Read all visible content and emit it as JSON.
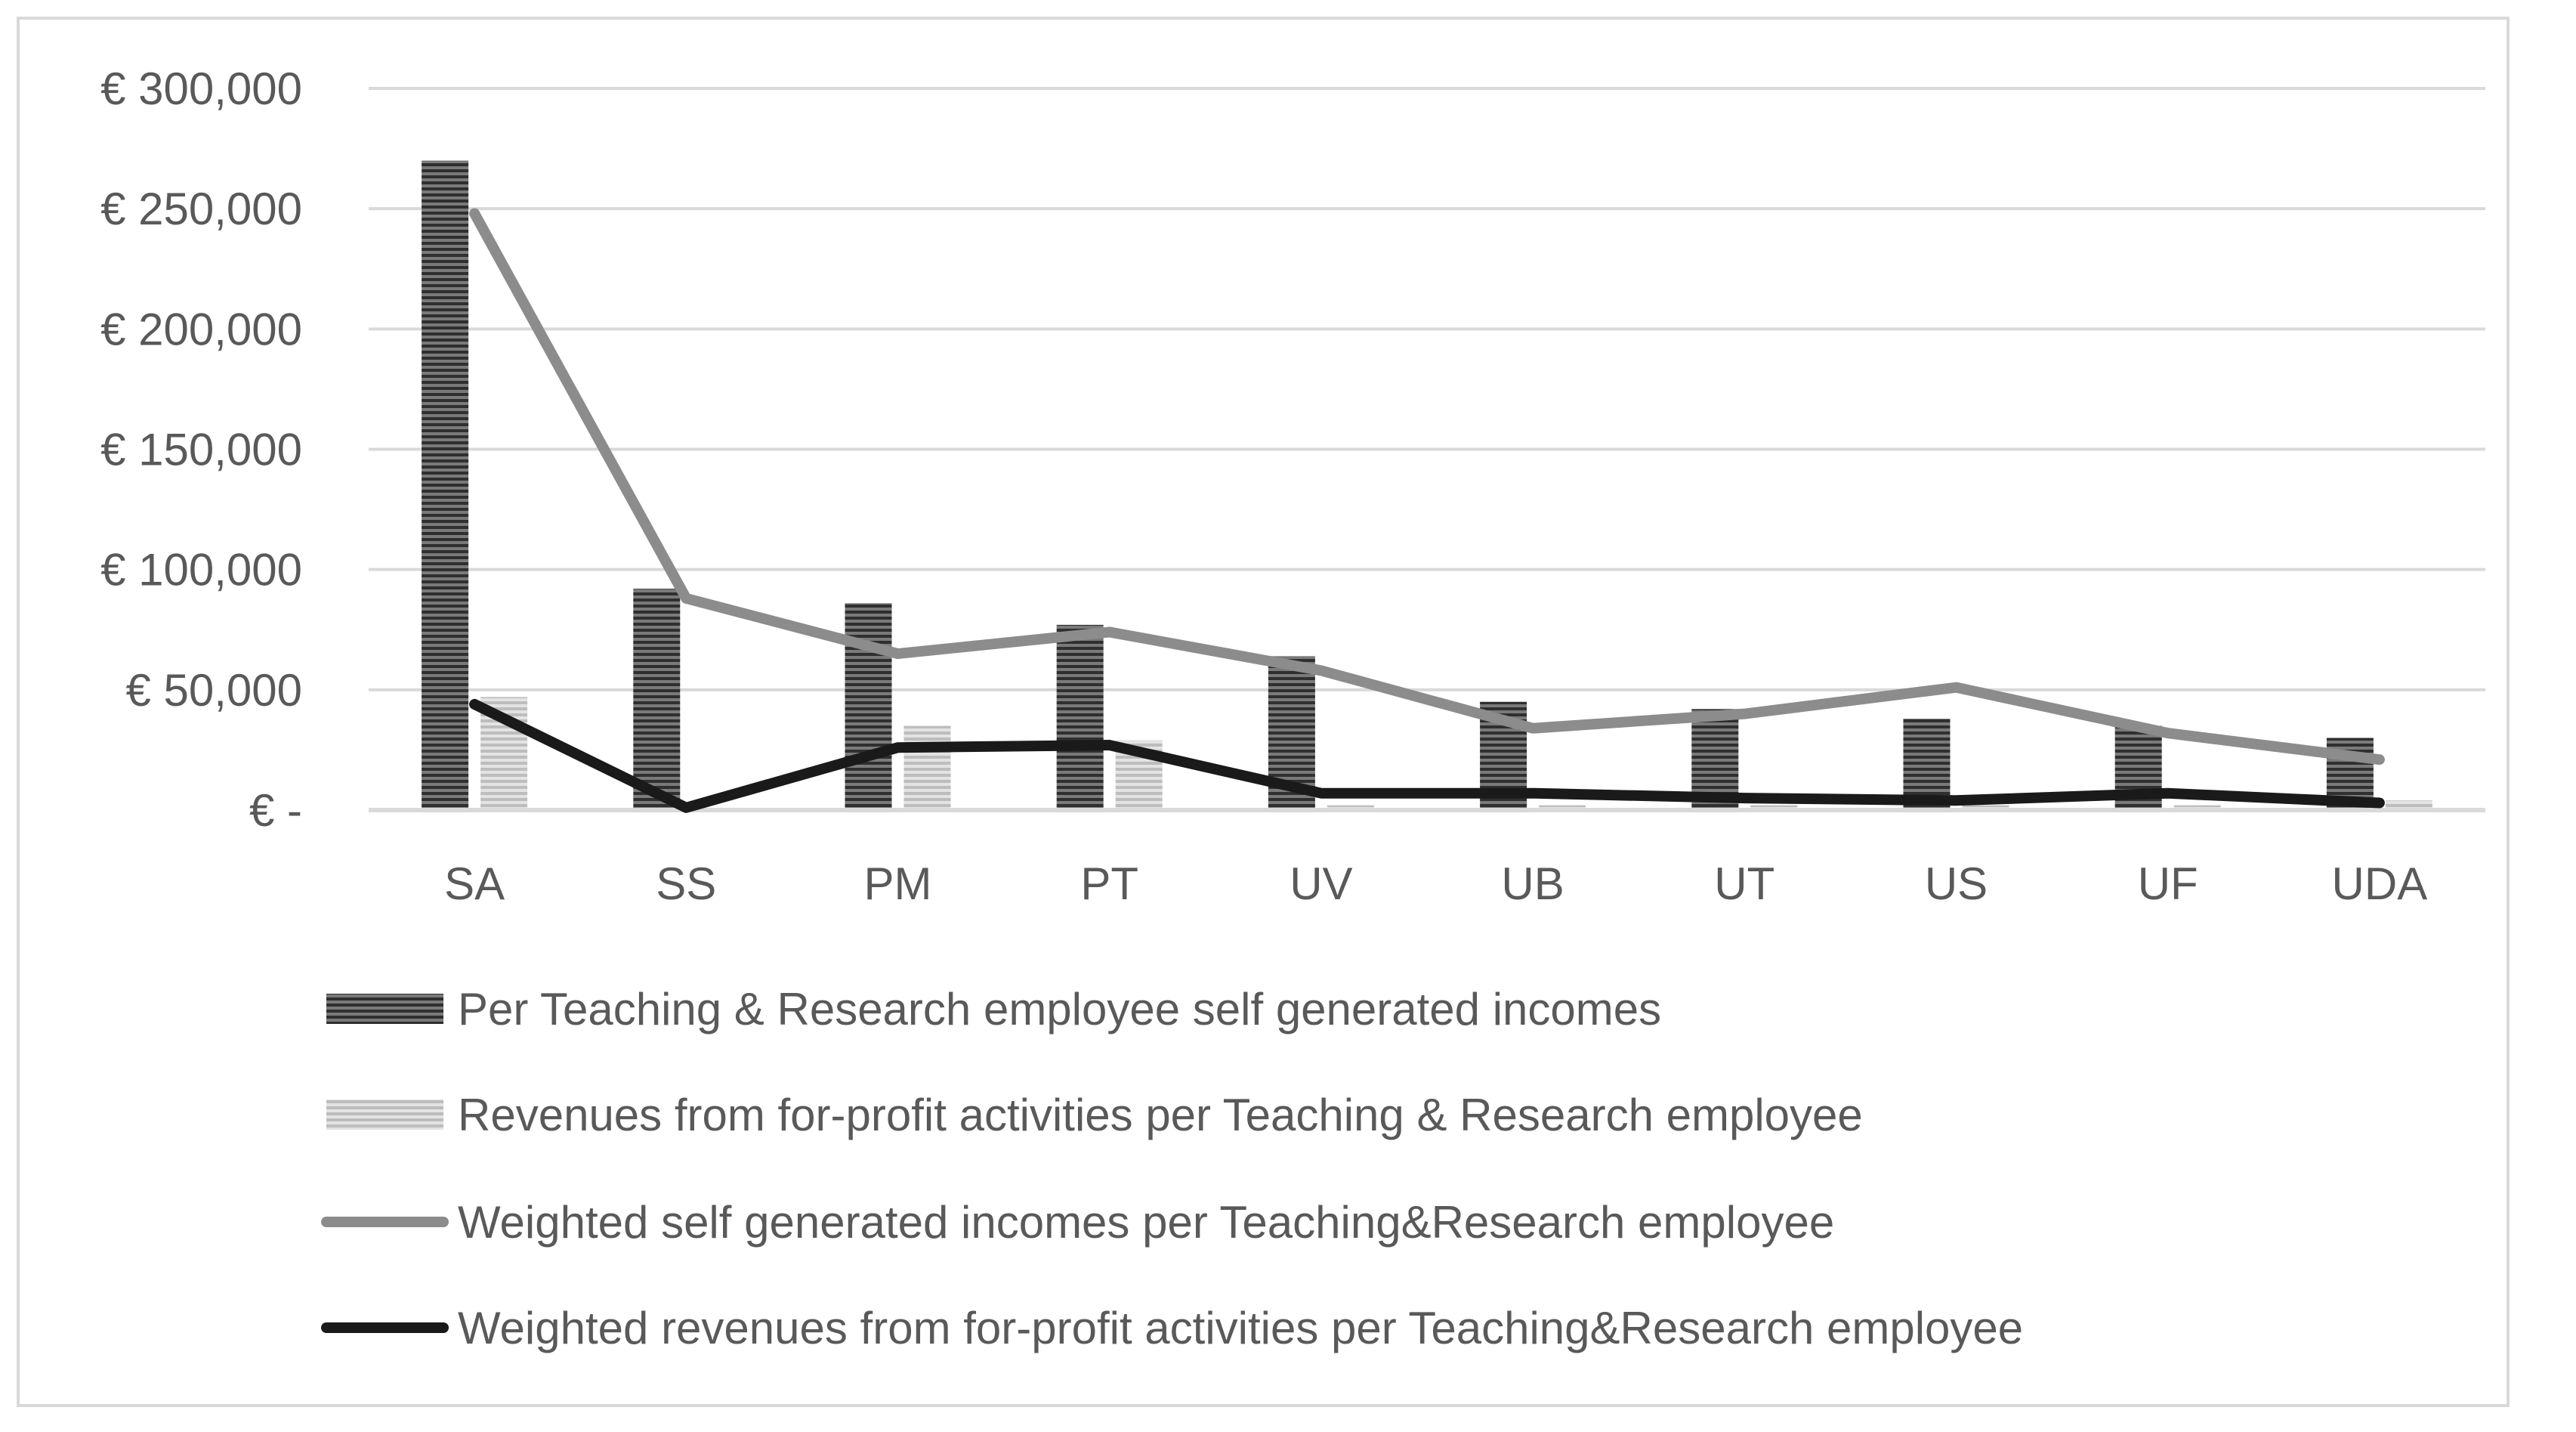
{
  "chart_data": {
    "type": "bar",
    "categories": [
      "SA",
      "SS",
      "PM",
      "PT",
      "UV",
      "UB",
      "UT",
      "US",
      "UF",
      "UDA"
    ],
    "y_tick_labels": [
      "€ -",
      "€ 50,000",
      "€ 100,000",
      "€ 150,000",
      "€ 200,000",
      "€ 250,000",
      "€ 300,000"
    ],
    "ylim": [
      0,
      300000
    ],
    "grid": true,
    "legend_position": "bottom",
    "series": [
      {
        "name": "Per Teaching & Research employee self generated incomes",
        "kind": "bar",
        "color": "#555555",
        "pattern": "dark-horizontal-stripes",
        "values": [
          270000,
          92000,
          86000,
          77000,
          64000,
          45000,
          42000,
          38000,
          35000,
          30000
        ]
      },
      {
        "name": "Revenues from for-profit activities per Teaching & Research employee",
        "kind": "bar",
        "color": "#c8c8c8",
        "pattern": "light-horizontal-stripes",
        "values": [
          47000,
          1000,
          35000,
          29000,
          2000,
          2000,
          2000,
          2000,
          2000,
          4000
        ]
      },
      {
        "name": "Weighted self generated incomes per Teaching&Research employee",
        "kind": "line",
        "color": "#8c8c8c",
        "values": [
          248000,
          88000,
          65000,
          74000,
          58000,
          34000,
          40000,
          51000,
          32000,
          21000
        ]
      },
      {
        "name": "Weighted revenues from for-profit activities per Teaching&Research employee",
        "kind": "line",
        "color": "#1a1a1a",
        "values": [
          44000,
          1000,
          26000,
          27000,
          7000,
          7000,
          5000,
          4000,
          7000,
          3000
        ]
      }
    ]
  }
}
